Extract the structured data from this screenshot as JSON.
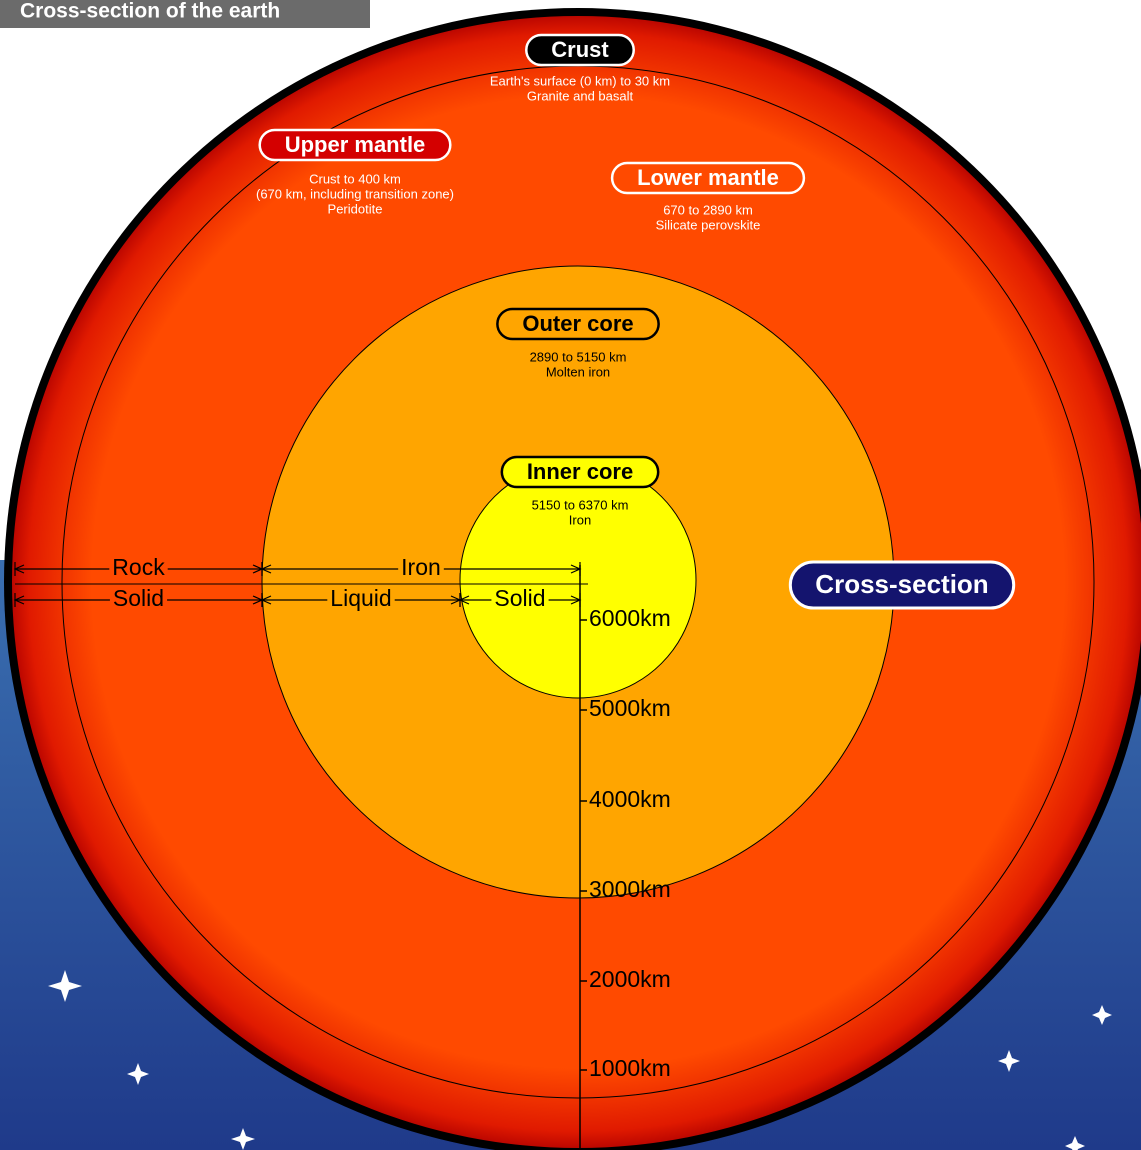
{
  "header": {
    "title": "Cross-section of the earth"
  },
  "layers": [
    {
      "label": "Crust",
      "lines": [
        "Earth's surface (0 km) to 30 km",
        "Granite and basalt"
      ]
    },
    {
      "label": "Upper mantle",
      "lines": [
        "Crust to 400 km",
        "(670 km, including transition zone)",
        "Peridotite"
      ]
    },
    {
      "label": "Lower mantle",
      "lines": [
        "670 to 2890 km",
        "Silicate perovskite"
      ]
    },
    {
      "label": "Outer core",
      "lines": [
        "2890 to 5150 km",
        "Molten iron"
      ]
    },
    {
      "label": "Inner core",
      "lines": [
        "5150 to 6370 km",
        "Iron"
      ]
    }
  ],
  "composition": [
    "Rock",
    "Iron"
  ],
  "state": [
    "Solid",
    "Liquid",
    "Solid"
  ],
  "scale": [
    "6000km",
    "5000km",
    "4000km",
    "3000km",
    "2000km",
    "1000km"
  ],
  "badge": "Cross-section"
}
